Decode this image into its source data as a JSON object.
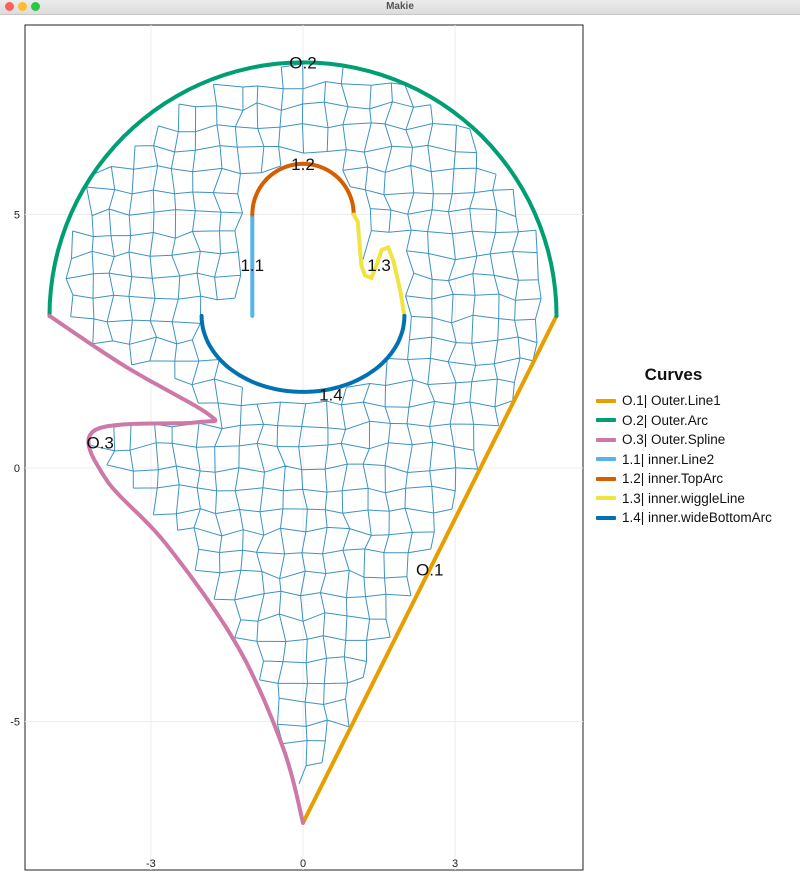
{
  "window": {
    "title": "Makie"
  },
  "chart_data": {
    "type": "mesh",
    "x_ticks": [
      -3,
      0,
      3
    ],
    "x_tick_labels": [
      "-3",
      "0",
      "3"
    ],
    "y_ticks": [
      -5,
      0,
      5
    ],
    "y_tick_labels": [
      "-5",
      "0",
      "5"
    ],
    "xlim": [
      -5.5,
      5.5
    ],
    "ylim": [
      -7.8,
      8.8
    ],
    "grid": true,
    "mesh_color": "#3c93c2",
    "legend": {
      "title": "Curves",
      "placement": "right",
      "entries": [
        {
          "id": "O.1",
          "label": "O.1| Outer.Line1",
          "color": "#e69f00"
        },
        {
          "id": "O.2",
          "label": "O.2| Outer.Arc",
          "color": "#009e73"
        },
        {
          "id": "O.3",
          "label": "O.3| Outer.Spline",
          "color": "#cc79a7"
        },
        {
          "id": "1.1",
          "label": "1.1| inner.Line2",
          "color": "#56b4e9"
        },
        {
          "id": "1.2",
          "label": "1.2| inner.TopArc",
          "color": "#d55e00"
        },
        {
          "id": "1.3",
          "label": "1.3| inner.wiggleLine",
          "color": "#f0e442"
        },
        {
          "id": "1.4",
          "label": "1.4| inner.wideBottomArc",
          "color": "#0072b2"
        }
      ]
    },
    "curve_labels": [
      {
        "text": "O.1",
        "x": 2.5,
        "y": -2.0
      },
      {
        "text": "O.2",
        "x": 0.0,
        "y": 8.0
      },
      {
        "text": "O.3",
        "x": -4.0,
        "y": 0.5
      },
      {
        "text": "1.1",
        "x": -1.0,
        "y": 4.0
      },
      {
        "text": "1.2",
        "x": 0.0,
        "y": 6.0
      },
      {
        "text": "1.3",
        "x": 1.5,
        "y": 4.0
      },
      {
        "text": "1.4",
        "x": 0.55,
        "y": 1.45
      }
    ],
    "curves": {
      "O.1": {
        "kind": "line",
        "from": [
          0,
          -7
        ],
        "to": [
          5,
          3
        ]
      },
      "O.2": {
        "kind": "arc",
        "center": [
          0,
          3
        ],
        "radius": 5,
        "start_deg": 0,
        "end_deg": 180
      },
      "O.3": {
        "kind": "spline",
        "points": [
          [
            -5,
            3
          ],
          [
            -3.5,
            2
          ],
          [
            -1.85,
            1.05
          ],
          [
            -2.1,
            0.9
          ],
          [
            -4.1,
            0.75
          ],
          [
            -3.9,
            -0.2
          ],
          [
            -2.7,
            -1.5
          ],
          [
            -1.3,
            -3.5
          ],
          [
            -0.4,
            -5.5
          ],
          [
            0,
            -7
          ]
        ]
      },
      "1.1": {
        "kind": "line",
        "from": [
          -1,
          3
        ],
        "to": [
          -1,
          5
        ]
      },
      "1.2": {
        "kind": "arc",
        "center": [
          0,
          5
        ],
        "radius": 1,
        "start_deg": 0,
        "end_deg": 180
      },
      "1.3": {
        "kind": "polyline",
        "points": [
          [
            1,
            5
          ],
          [
            1.08,
            4.85
          ],
          [
            1.15,
            4.0
          ],
          [
            1.22,
            3.8
          ],
          [
            1.35,
            3.75
          ],
          [
            1.45,
            4.0
          ],
          [
            1.55,
            4.3
          ],
          [
            1.68,
            4.35
          ],
          [
            1.78,
            4.1
          ],
          [
            1.92,
            3.5
          ],
          [
            2,
            3
          ]
        ]
      },
      "1.4": {
        "kind": "arc",
        "center": [
          0,
          3
        ],
        "radius": 2,
        "start_deg": 180,
        "end_deg": 360,
        "ry": 1.5
      }
    }
  }
}
